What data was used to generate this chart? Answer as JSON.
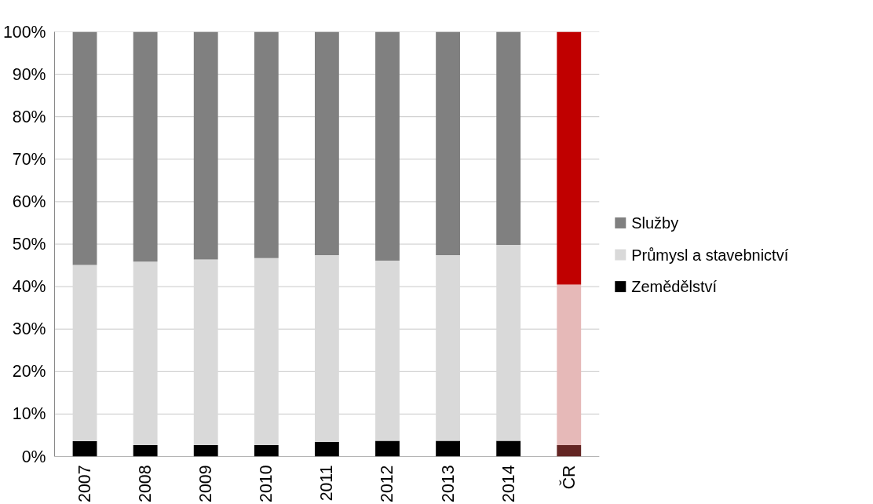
{
  "chart_data": {
    "type": "bar",
    "stacked": true,
    "categories": [
      "2007",
      "2008",
      "2009",
      "2010",
      "2011",
      "2012",
      "2013",
      "2014",
      "ČR"
    ],
    "series": [
      {
        "name": "Zemědělství",
        "color": "#000000",
        "colors": [
          "#000000",
          "#000000",
          "#000000",
          "#000000",
          "#000000",
          "#000000",
          "#000000",
          "#000000",
          "#632523"
        ],
        "values": [
          3.6,
          2.7,
          2.7,
          2.7,
          3.4,
          3.7,
          3.7,
          3.7,
          2.7
        ]
      },
      {
        "name": "Průmysl a stavebnictví",
        "color": "#d9d9d9",
        "colors": [
          "#d9d9d9",
          "#d9d9d9",
          "#d9d9d9",
          "#d9d9d9",
          "#d9d9d9",
          "#d9d9d9",
          "#d9d9d9",
          "#d9d9d9",
          "#e6b9b8"
        ],
        "values": [
          41.5,
          43.2,
          43.7,
          44.0,
          44.0,
          42.4,
          43.7,
          46.1,
          37.8
        ]
      },
      {
        "name": "Služby",
        "color": "#808080",
        "colors": [
          "#808080",
          "#808080",
          "#808080",
          "#808080",
          "#808080",
          "#808080",
          "#808080",
          "#808080",
          "#c00000"
        ],
        "values": [
          54.9,
          54.1,
          53.6,
          53.3,
          52.6,
          53.9,
          52.6,
          50.2,
          59.5
        ]
      }
    ],
    "ylim": [
      0,
      100
    ],
    "yticks": [
      {
        "value": 0,
        "label": "0%"
      },
      {
        "value": 10,
        "label": "10%"
      },
      {
        "value": 20,
        "label": "20%"
      },
      {
        "value": 30,
        "label": "30%"
      },
      {
        "value": 40,
        "label": "40%"
      },
      {
        "value": 50,
        "label": "50%"
      },
      {
        "value": 60,
        "label": "60%"
      },
      {
        "value": 70,
        "label": "70%"
      },
      {
        "value": 80,
        "label": "80%"
      },
      {
        "value": 90,
        "label": "90%"
      },
      {
        "value": 100,
        "label": "100%"
      }
    ],
    "grid": "y",
    "legend": "right"
  }
}
